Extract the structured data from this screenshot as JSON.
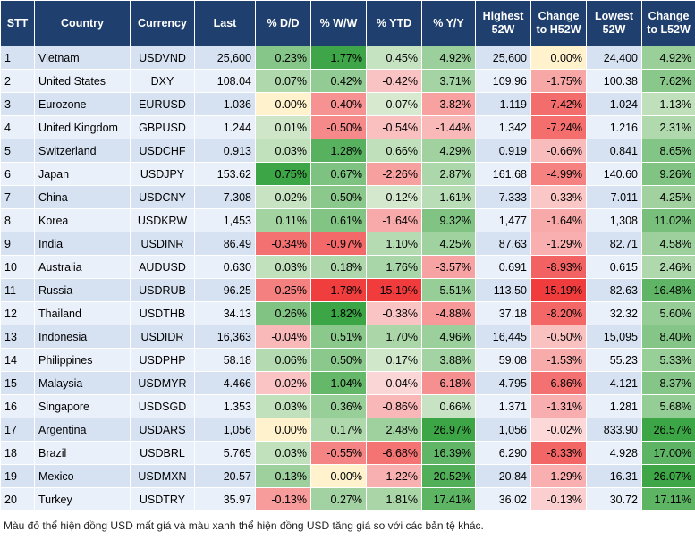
{
  "table": {
    "columns": [
      "STT",
      "Country",
      "Currency",
      "Last",
      "% D/D",
      "% W/W",
      "% YTD",
      "% Y/Y",
      "Highest 52W",
      "Change to H52W",
      "Lowest 52W",
      "Change to L52W"
    ],
    "rows": [
      [
        "1",
        "Vietnam",
        "USDVND",
        "25,600",
        "0.23%",
        "1.77%",
        "0.45%",
        "4.92%",
        "25,600",
        "0.00%",
        "24,400",
        "4.92%"
      ],
      [
        "2",
        "United States",
        "DXY",
        "108.04",
        "0.07%",
        "0.42%",
        "-0.42%",
        "3.71%",
        "109.96",
        "-1.75%",
        "100.38",
        "7.62%"
      ],
      [
        "3",
        "Eurozone",
        "EURUSD",
        "1.036",
        "0.00%",
        "-0.40%",
        "0.07%",
        "-3.82%",
        "1.119",
        "-7.42%",
        "1.024",
        "1.13%"
      ],
      [
        "4",
        "United Kingdom",
        "GBPUSD",
        "1.244",
        "0.01%",
        "-0.50%",
        "-0.54%",
        "-1.44%",
        "1.342",
        "-7.24%",
        "1.216",
        "2.31%"
      ],
      [
        "5",
        "Switzerland",
        "USDCHF",
        "0.913",
        "0.03%",
        "1.28%",
        "0.66%",
        "4.29%",
        "0.919",
        "-0.66%",
        "0.841",
        "8.65%"
      ],
      [
        "6",
        "Japan",
        "USDJPY",
        "153.62",
        "0.75%",
        "0.67%",
        "-2.26%",
        "2.87%",
        "161.68",
        "-4.99%",
        "140.60",
        "9.26%"
      ],
      [
        "7",
        "China",
        "USDCNY",
        "7.308",
        "0.02%",
        "0.50%",
        "0.12%",
        "1.61%",
        "7.333",
        "-0.33%",
        "7.011",
        "4.25%"
      ],
      [
        "8",
        "Korea",
        "USDKRW",
        "1,453",
        "0.11%",
        "0.61%",
        "-1.64%",
        "9.32%",
        "1,477",
        "-1.64%",
        "1,308",
        "11.02%"
      ],
      [
        "9",
        "India",
        "USDINR",
        "86.49",
        "-0.34%",
        "-0.97%",
        "1.10%",
        "4.25%",
        "87.63",
        "-1.29%",
        "82.71",
        "4.58%"
      ],
      [
        "10",
        "Australia",
        "AUDUSD",
        "0.630",
        "0.03%",
        "0.18%",
        "1.76%",
        "-3.57%",
        "0.691",
        "-8.93%",
        "0.615",
        "2.46%"
      ],
      [
        "11",
        "Russia",
        "USDRUB",
        "96.25",
        "-0.25%",
        "-1.78%",
        "-15.19%",
        "5.51%",
        "113.50",
        "-15.19%",
        "82.63",
        "16.48%"
      ],
      [
        "12",
        "Thailand",
        "USDTHB",
        "34.13",
        "0.26%",
        "1.82%",
        "-0.38%",
        "-4.88%",
        "37.18",
        "-8.20%",
        "32.32",
        "5.60%"
      ],
      [
        "13",
        "Indonesia",
        "USDIDR",
        "16,363",
        "-0.04%",
        "0.51%",
        "1.70%",
        "4.96%",
        "16,445",
        "-0.50%",
        "15,095",
        "8.40%"
      ],
      [
        "14",
        "Philippines",
        "USDPHP",
        "58.18",
        "0.06%",
        "0.50%",
        "0.17%",
        "3.88%",
        "59.08",
        "-1.53%",
        "55.23",
        "5.33%"
      ],
      [
        "15",
        "Malaysia",
        "USDMYR",
        "4.466",
        "-0.02%",
        "1.04%",
        "-0.04%",
        "-6.18%",
        "4.795",
        "-6.86%",
        "4.121",
        "8.37%"
      ],
      [
        "16",
        "Singapore",
        "USDSGD",
        "1.353",
        "0.03%",
        "0.36%",
        "-0.86%",
        "0.66%",
        "1.371",
        "-1.31%",
        "1.281",
        "5.68%"
      ],
      [
        "17",
        "Argentina",
        "USDARS",
        "1,056",
        "0.00%",
        "0.17%",
        "2.48%",
        "26.97%",
        "1,056",
        "-0.02%",
        "833.90",
        "26.57%"
      ],
      [
        "18",
        "Brazil",
        "USDBRL",
        "5.765",
        "0.03%",
        "-0.55%",
        "-6.68%",
        "16.39%",
        "6.290",
        "-8.33%",
        "4.928",
        "17.00%"
      ],
      [
        "19",
        "Mexico",
        "USDMXN",
        "20.57",
        "0.13%",
        "0.00%",
        "-1.22%",
        "20.52%",
        "20.84",
        "-1.29%",
        "16.31",
        "26.07%"
      ],
      [
        "20",
        "Turkey",
        "USDTRY",
        "35.97",
        "-0.13%",
        "0.27%",
        "1.81%",
        "17.41%",
        "36.02",
        "-0.13%",
        "30.72",
        "17.11%"
      ]
    ]
  },
  "footer": {
    "note": "Màu đỏ thể hiện đồng USD mất giá và màu xanh thể hiện đồng USD tăng giá so với các bản tệ khác."
  }
}
